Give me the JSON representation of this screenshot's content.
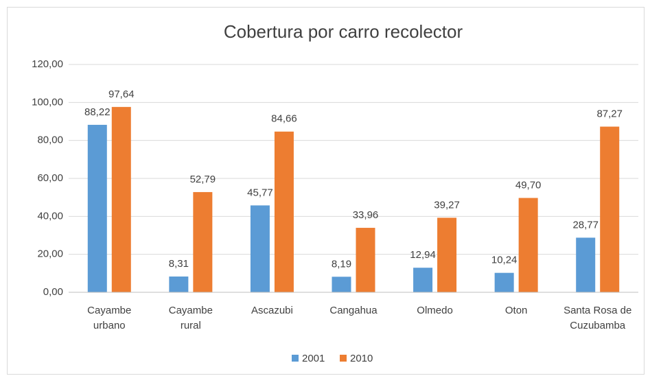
{
  "chart_data": {
    "type": "bar",
    "title": "Cobertura por carro recolector",
    "categories": [
      "Cayambe\nurbano",
      "Cayambe\nrural",
      "Ascazubi",
      "Cangahua",
      "Olmedo",
      "Oton",
      "Santa Rosa de\nCuzubamba"
    ],
    "series": [
      {
        "name": "2001",
        "color": "#5b9bd5",
        "values": [
          88.22,
          8.31,
          45.77,
          8.19,
          12.94,
          10.24,
          28.77
        ],
        "value_labels": [
          "88,22",
          "8,31",
          "45,77",
          "8,19",
          "12,94",
          "10,24",
          "28,77"
        ]
      },
      {
        "name": "2010",
        "color": "#ed7d31",
        "values": [
          97.64,
          52.79,
          84.66,
          33.96,
          39.27,
          49.7,
          87.27
        ],
        "value_labels": [
          "97,64",
          "52,79",
          "84,66",
          "33,96",
          "39,27",
          "49,70",
          "87,27"
        ]
      }
    ],
    "ylim": [
      0,
      120
    ],
    "yticks": [
      {
        "value": 0,
        "label": "0,00"
      },
      {
        "value": 20,
        "label": "20,00"
      },
      {
        "value": 40,
        "label": "40,00"
      },
      {
        "value": 60,
        "label": "60,00"
      },
      {
        "value": 80,
        "label": "80,00"
      },
      {
        "value": 100,
        "label": "100,00"
      },
      {
        "value": 120,
        "label": "120,00"
      }
    ],
    "grid": true,
    "legend": "bottom"
  }
}
